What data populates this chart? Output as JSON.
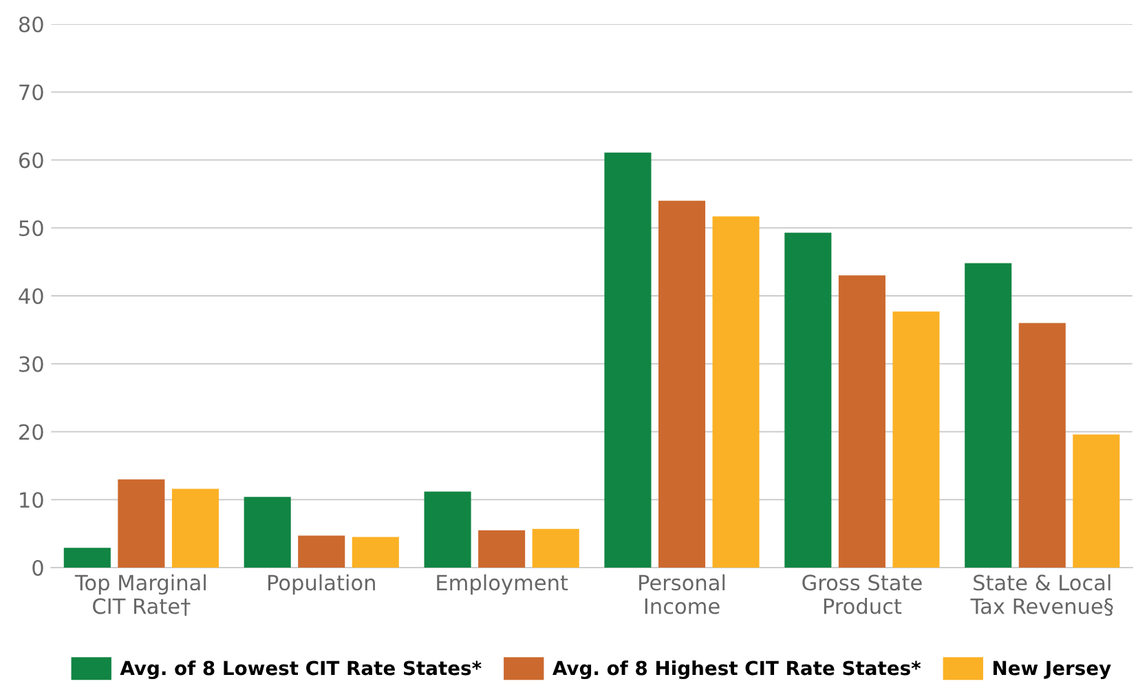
{
  "chart_data": {
    "type": "bar",
    "categories": [
      "Top Marginal\nCIT Rate†",
      "Population",
      "Employment",
      "Personal\nIncome",
      "Gross State\nProduct",
      "State & Local\nTax Revenue§"
    ],
    "series": [
      {
        "name": "Avg. of 8 Lowest CIT Rate States*",
        "color": "#118543",
        "values": [
          2.9,
          10.4,
          11.2,
          61.1,
          49.3,
          44.8
        ]
      },
      {
        "name": "Avg. of 8 Highest CIT Rate States*",
        "color": "#cc692e",
        "values": [
          13.0,
          4.7,
          5.5,
          54.0,
          43.0,
          36.0
        ]
      },
      {
        "name": "New Jersey",
        "color": "#fbb125",
        "values": [
          11.6,
          4.5,
          5.7,
          51.7,
          37.7,
          19.6
        ]
      }
    ],
    "ylim": [
      0,
      80
    ],
    "yticks": [
      0,
      10,
      20,
      30,
      40,
      50,
      60,
      70,
      80
    ],
    "grid": "y",
    "legend": "bottom"
  }
}
